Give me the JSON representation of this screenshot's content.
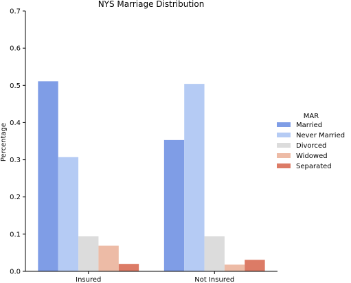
{
  "chart_data": {
    "type": "bar",
    "title": "NYS Marriage Distribution",
    "xlabel": "",
    "ylabel": "Percentage",
    "ylim": [
      0,
      0.7
    ],
    "yticks": [
      "0.0",
      "0.1",
      "0.2",
      "0.3",
      "0.4",
      "0.5",
      "0.6",
      "0.7"
    ],
    "grid": false,
    "legend_title": "MAR",
    "legend_position": "right",
    "categories": [
      "Insured",
      "Not Insured"
    ],
    "series": [
      {
        "name": "Married",
        "color": "#7f9de6",
        "values": [
          0.511,
          0.353
        ]
      },
      {
        "name": "Never Married",
        "color": "#b5cbf4",
        "values": [
          0.307,
          0.504
        ]
      },
      {
        "name": "Divorced",
        "color": "#dcdcdc",
        "values": [
          0.094,
          0.094
        ]
      },
      {
        "name": "Widowed",
        "color": "#edbba6",
        "values": [
          0.069,
          0.018
        ]
      },
      {
        "name": "Separated",
        "color": "#dc7b66",
        "values": [
          0.02,
          0.031
        ]
      }
    ]
  }
}
